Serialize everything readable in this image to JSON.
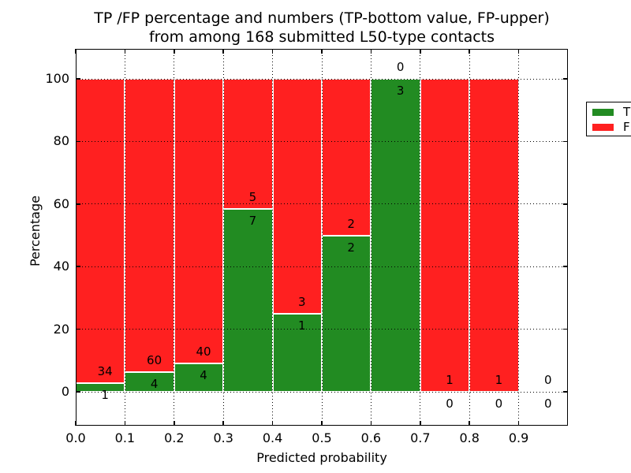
{
  "title": {
    "line1": "TP /FP percentage and numbers (TP-bottom value, FP-upper)",
    "line2": "from among 168 submitted L50-type contacts"
  },
  "axes": {
    "xlabel": "Predicted probability",
    "ylabel": "Percentage"
  },
  "legend": {
    "position": "upper right",
    "items": [
      {
        "label": "TP",
        "color": "#228B22"
      },
      {
        "label": "FP",
        "color": "#FF2020"
      }
    ]
  },
  "colors": {
    "tp_green": "#228B22",
    "fp_red": "#FF2020",
    "grid": "#000000",
    "background": "#FFFFFF",
    "bar_edge": "#FFFFFF"
  },
  "chart_data": {
    "type": "bar",
    "stacked": true,
    "normalized_to_percent": true,
    "title": "TP /FP percentage and numbers (TP-bottom value, FP-upper)\nfrom among 168 submitted L50-type contacts",
    "xlabel": "Predicted probability",
    "ylabel": "Percentage",
    "total_contacts": 168,
    "bin_width": 0.1,
    "x_tick_labels": [
      "0.0",
      "0.1",
      "0.2",
      "0.3",
      "0.4",
      "0.5",
      "0.6",
      "0.7",
      "0.8",
      "0.9"
    ],
    "y_ticks": [
      0,
      20,
      40,
      60,
      80,
      100
    ],
    "xlim": [
      0.0,
      1.0
    ],
    "ylim": [
      -11,
      110
    ],
    "grid": "dotted",
    "legend_position": "upper right",
    "label_note": "TP count printed below segment boundary, FP count printed above it",
    "bins": [
      {
        "x_start": 0.0,
        "tp": 1,
        "fp": 34
      },
      {
        "x_start": 0.1,
        "tp": 4,
        "fp": 60
      },
      {
        "x_start": 0.2,
        "tp": 4,
        "fp": 40
      },
      {
        "x_start": 0.3,
        "tp": 7,
        "fp": 5
      },
      {
        "x_start": 0.4,
        "tp": 1,
        "fp": 3
      },
      {
        "x_start": 0.5,
        "tp": 2,
        "fp": 2
      },
      {
        "x_start": 0.6,
        "tp": 3,
        "fp": 0
      },
      {
        "x_start": 0.7,
        "tp": 0,
        "fp": 1
      },
      {
        "x_start": 0.8,
        "tp": 0,
        "fp": 1
      },
      {
        "x_start": 0.9,
        "tp": 0,
        "fp": 0
      }
    ],
    "series": [
      {
        "name": "TP",
        "color": "#228B22",
        "values": [
          1,
          4,
          4,
          7,
          1,
          2,
          3,
          0,
          0,
          0
        ]
      },
      {
        "name": "FP",
        "color": "#FF2020",
        "values": [
          34,
          60,
          40,
          5,
          3,
          2,
          0,
          1,
          1,
          0
        ]
      }
    ]
  }
}
